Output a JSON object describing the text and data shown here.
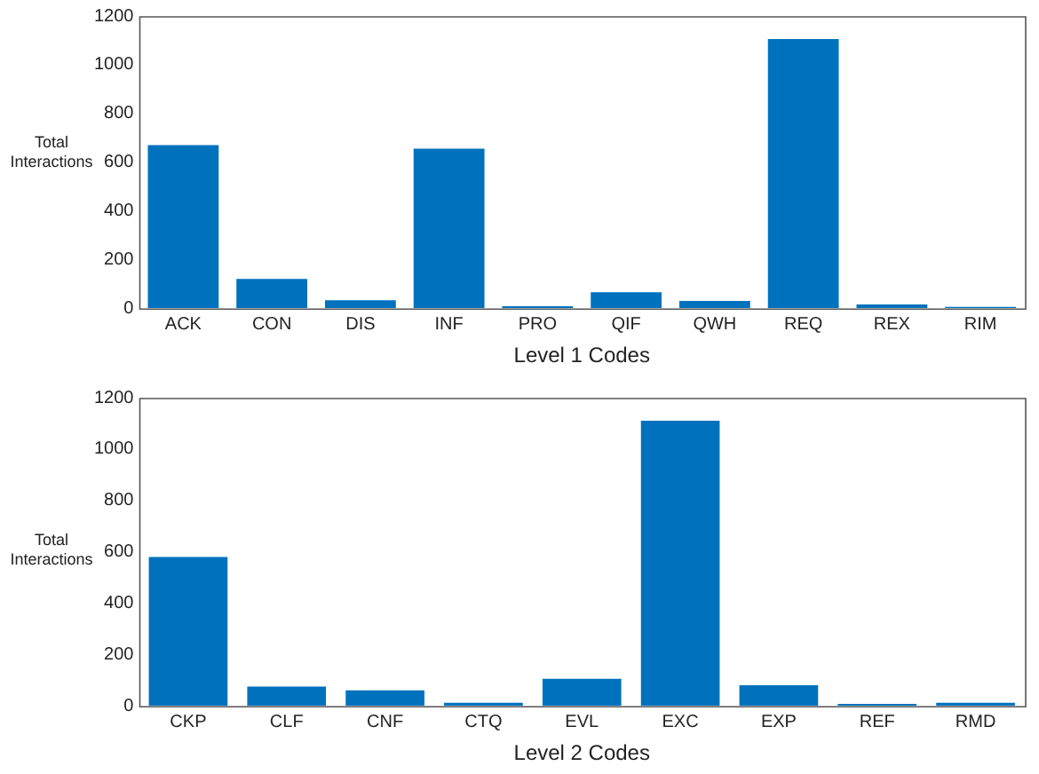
{
  "chart_data": [
    {
      "type": "bar",
      "xlabel": "Level 1 Codes",
      "ylabel": "Total Interactions",
      "categories": [
        "ACK",
        "CON",
        "DIS",
        "INF",
        "PRO",
        "QIF",
        "QWH",
        "REQ",
        "REX",
        "RIM"
      ],
      "values": [
        670,
        120,
        33,
        655,
        8,
        65,
        30,
        1105,
        15,
        5
      ],
      "color": "#0072bd",
      "ylim": [
        0,
        1200
      ],
      "yticks": [
        0,
        200,
        400,
        600,
        800,
        1000,
        1200
      ],
      "grid": false,
      "legend": false
    },
    {
      "type": "bar",
      "xlabel": "Level 2 Codes",
      "ylabel": "Total Interactions",
      "categories": [
        "CKP",
        "CLF",
        "CNF",
        "CTQ",
        "EVL",
        "EXC",
        "EXP",
        "REF",
        "RMD"
      ],
      "values": [
        580,
        75,
        60,
        12,
        105,
        1110,
        80,
        8,
        12
      ],
      "color": "#0072bd",
      "ylim": [
        0,
        1200
      ],
      "yticks": [
        0,
        200,
        400,
        600,
        800,
        1000,
        1200
      ],
      "grid": false,
      "legend": false
    }
  ]
}
